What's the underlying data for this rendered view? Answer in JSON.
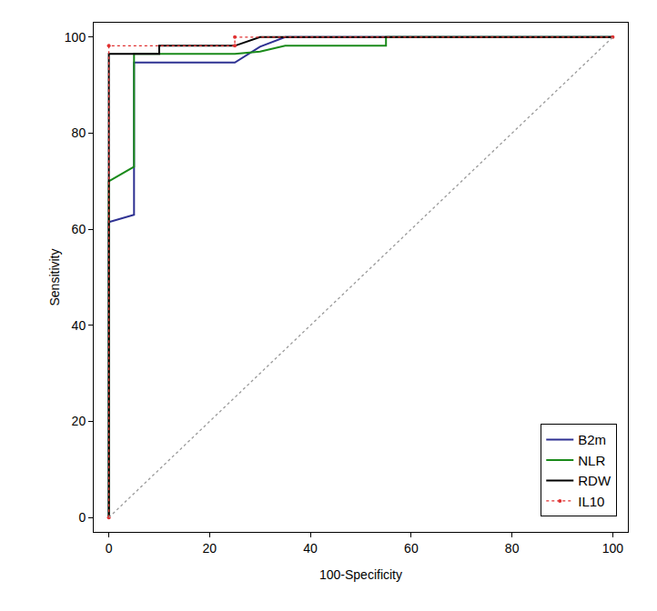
{
  "chart_data": {
    "type": "line",
    "x_label": "100-Specificity",
    "y_label": "Sensitivity",
    "xlim": [
      -3,
      103
    ],
    "ylim": [
      -3,
      103
    ],
    "xticks": [
      0,
      20,
      40,
      60,
      80,
      100
    ],
    "yticks": [
      0,
      20,
      40,
      60,
      80,
      100
    ],
    "grid": false,
    "legend": "bottom right",
    "series": [
      {
        "name": "B2m",
        "color": "#2e3192",
        "line_style": "solid",
        "x": [
          0,
          0,
          5,
          5,
          25,
          30,
          35,
          100
        ],
        "values": [
          0,
          61.5,
          63,
          94.7,
          94.7,
          98,
          100,
          100
        ]
      },
      {
        "name": "NLR",
        "color": "#1a8a1a",
        "line_style": "solid",
        "x": [
          0,
          0,
          5,
          5,
          25,
          30,
          35,
          55,
          55,
          100
        ],
        "values": [
          0,
          70,
          73,
          96.5,
          96.5,
          97,
          98.2,
          98.2,
          100,
          100
        ]
      },
      {
        "name": "RDW",
        "color": "#000000",
        "line_style": "solid",
        "x": [
          0,
          0,
          10,
          10,
          25,
          30,
          100
        ],
        "values": [
          0,
          96.5,
          96.5,
          98.2,
          98.2,
          100,
          100
        ]
      },
      {
        "name": "IL10",
        "color": "#e03030",
        "line_style": "dotted",
        "marker": "circle",
        "x": [
          0,
          0,
          25,
          25,
          100
        ],
        "values": [
          0,
          98.2,
          98.2,
          100,
          100
        ]
      },
      {
        "color": "#999999",
        "line_style": "dotted",
        "x": [
          0,
          100
        ],
        "values": [
          0,
          100
        ]
      }
    ]
  }
}
